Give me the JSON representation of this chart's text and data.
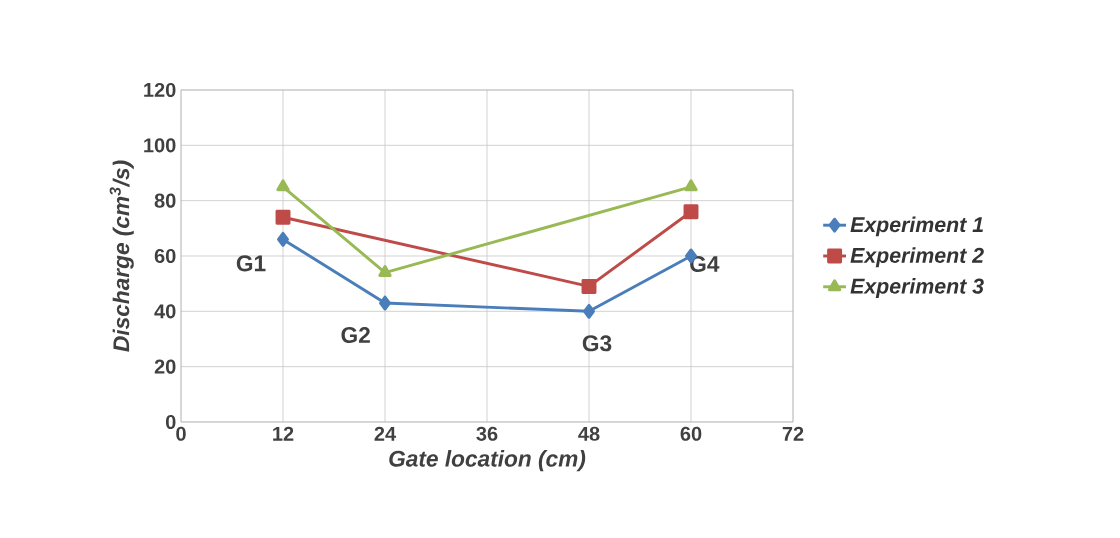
{
  "chart_data": {
    "type": "line",
    "xlabel": "Gate location (cm)",
    "ylabel": "Discharge (cm$^{3}$/s)",
    "xlim": [
      0,
      72
    ],
    "xticks": [
      0,
      12,
      24,
      36,
      48,
      60,
      72
    ],
    "ylim": [
      0,
      120
    ],
    "yticks": [
      0,
      20,
      40,
      60,
      80,
      100,
      120
    ],
    "grid": true,
    "legend": "right",
    "line_style": "solid",
    "series": [
      {
        "name": "Experiment 1",
        "color": "#4a7ebb",
        "marker": "diamond",
        "x": [
          12,
          24,
          48,
          60
        ],
        "values": [
          66,
          43,
          40,
          60
        ]
      },
      {
        "name": "Experiment 2",
        "color": "#be4b48",
        "marker": "square",
        "x": [
          12,
          48,
          60
        ],
        "values": [
          74,
          49,
          76
        ]
      },
      {
        "name": "Experiment 3",
        "color": "#98b954",
        "marker": "triangle",
        "x": [
          12,
          24,
          60
        ],
        "values": [
          85,
          54,
          85
        ]
      }
    ],
    "annotations": [
      "G1",
      "G2",
      "G3",
      "G4"
    ]
  }
}
